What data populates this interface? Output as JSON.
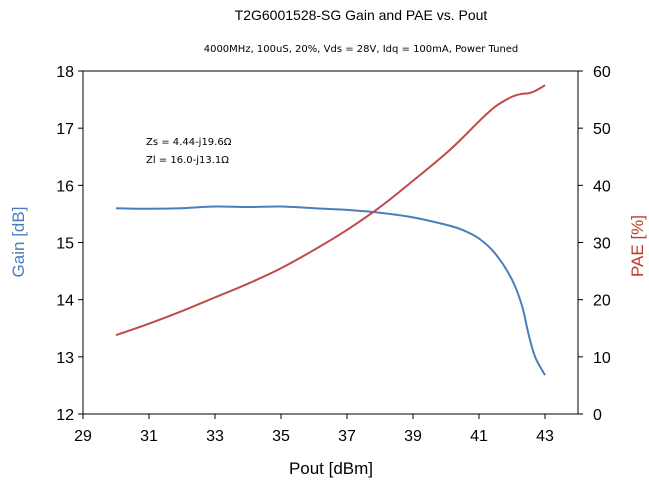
{
  "chart_data": {
    "type": "line",
    "title": "T2G6001528-SG Gain and PAE vs. Pout",
    "subtitle": "4000MHz, 100uS, 20%, Vds = 28V, Idq = 100mA, Power Tuned",
    "xlabel": "Pout [dBm]",
    "ylabel_left": "Gain [dB]",
    "ylabel_right": "PAE [%]",
    "xlim": [
      29,
      44
    ],
    "xticks": [
      29,
      31,
      33,
      35,
      37,
      39,
      41,
      43
    ],
    "ylim_left": [
      12,
      18
    ],
    "yticks_left": [
      12,
      13,
      14,
      15,
      16,
      17,
      18
    ],
    "ylim_right": [
      0,
      60
    ],
    "yticks_right": [
      0,
      10,
      20,
      30,
      40,
      50,
      60
    ],
    "annotations": [
      "Zs = 4.44-j19.6Ω",
      "Zl = 16.0-j13.1Ω"
    ],
    "grid": false,
    "colors": {
      "gain": "#4a7ebb",
      "pae": "#be4b48",
      "gain_label": "#4a7ebb",
      "pae_label": "#c0392b"
    },
    "series": [
      {
        "axis": "left",
        "x": [
          30.0,
          31.0,
          32.0,
          33.0,
          34.0,
          35.0,
          36.0,
          37.0,
          38.0,
          39.0,
          40.0,
          40.5,
          41.0,
          41.5,
          42.0,
          42.3,
          42.5,
          42.7,
          43.0
        ],
        "values": [
          15.6,
          15.59,
          15.6,
          15.63,
          15.62,
          15.63,
          15.6,
          15.57,
          15.52,
          15.44,
          15.31,
          15.22,
          15.07,
          14.8,
          14.35,
          13.9,
          13.4,
          13.0,
          12.68
        ]
      },
      {
        "axis": "right",
        "x": [
          30.0,
          31.0,
          32.0,
          33.0,
          34.0,
          35.0,
          36.0,
          37.0,
          38.0,
          39.0,
          40.0,
          40.5,
          41.0,
          41.5,
          42.0,
          42.3,
          42.5,
          42.7,
          43.0
        ],
        "values": [
          13.8,
          15.8,
          18.0,
          20.4,
          22.8,
          25.5,
          28.7,
          32.2,
          36.2,
          40.8,
          45.6,
          48.3,
          51.2,
          53.8,
          55.5,
          56.0,
          56.1,
          56.5,
          57.5
        ]
      }
    ]
  }
}
